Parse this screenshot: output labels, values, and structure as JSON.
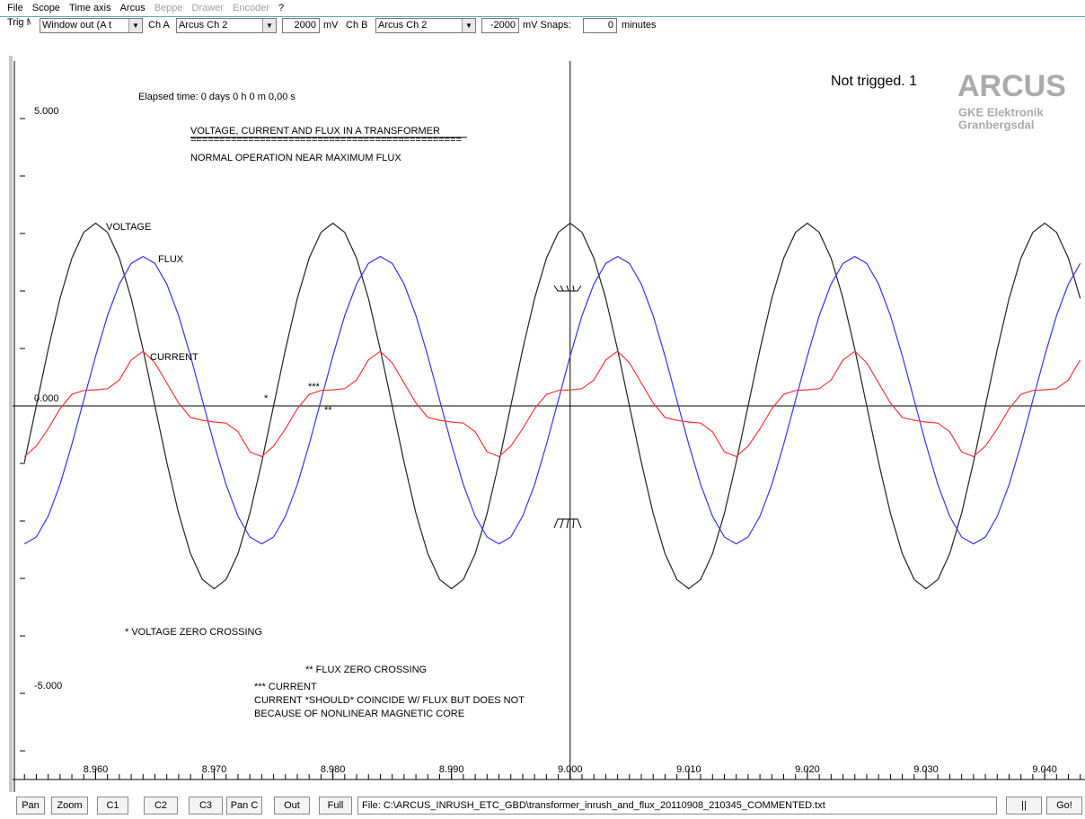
{
  "menu": [
    {
      "label": "File",
      "enabled": true
    },
    {
      "label": "Scope",
      "enabled": true
    },
    {
      "label": "Time axis",
      "enabled": true
    },
    {
      "label": "Arcus",
      "enabled": true
    },
    {
      "label": "Beppe",
      "enabled": false
    },
    {
      "label": "Drawer",
      "enabled": false
    },
    {
      "label": "Encoder",
      "enabled": false
    },
    {
      "label": "?",
      "enabled": true
    }
  ],
  "toolbar": {
    "trig_label": "Trig Mode",
    "trig_mode": "Window out (A t",
    "cha_label": "Ch A",
    "cha_source": "Arcus Ch 2",
    "cha_level": "2000",
    "cha_unit": "mV",
    "chb_label": "Ch B",
    "chb_source": "Arcus Ch 2",
    "chb_level": "-2000",
    "chb_unit": "mV Snaps:",
    "snaps": "0",
    "snaps_unit": "minutes"
  },
  "buttons": [
    "Pan",
    "Zoom",
    "C1",
    "C2",
    "C3",
    "Pan C",
    "Out",
    "Full"
  ],
  "status_file": "File: C:\\ARCUS_INRUSH_ETC_GBD\\transformer_inrush_and_flux_20110908_210345_COMMENTED.txt",
  "buttons_right": [
    "||",
    "Go!"
  ],
  "chart_data": {
    "type": "line",
    "status": "Not trigged. 1",
    "logo": "ARCUS",
    "logo_line1": "GKE Elektronik",
    "logo_line2": "Granbergsdal",
    "elapsed": "Elapsed time: 0 days 0 h 0 m 0,00 s",
    "annotations": [
      "VOLTAGE, CURRENT AND FLUX IN A TRANSFORMER",
      "===============================================",
      "NORMAL OPERATION NEAR MAXIMUM FLUX",
      "* VOLTAGE ZERO CROSSING",
      "** FLUX ZERO CROSSING",
      "*** CURRENT",
      "CURRENT *SHOULD* COINCIDE W/ FLUX BUT DOES NOT",
      "BECAUSE OF NONLINEAR MAGNETIC CORE",
      "*",
      "***",
      "**"
    ],
    "x": [
      8.954,
      8.955,
      8.956,
      8.957,
      8.958,
      8.959,
      8.96,
      8.961,
      8.962,
      8.963,
      8.964,
      8.965,
      8.966,
      8.967,
      8.968,
      8.969,
      8.97,
      8.971,
      8.972,
      8.973,
      8.974,
      8.975,
      8.976,
      8.977,
      8.978,
      8.979,
      8.98,
      8.981,
      8.982,
      8.983,
      8.984,
      8.985,
      8.986,
      8.987,
      8.988,
      8.989,
      8.99,
      8.991,
      8.992,
      8.993,
      8.994,
      8.995,
      8.996,
      8.997,
      8.998,
      8.999,
      9.0,
      9.001,
      9.002,
      9.003,
      9.004,
      9.005,
      9.006,
      9.007,
      9.008,
      9.009,
      9.01,
      9.011,
      9.012,
      9.013,
      9.014,
      9.015,
      9.016,
      9.017,
      9.018,
      9.019,
      9.02,
      9.021,
      9.022,
      9.023,
      9.024,
      9.025,
      9.026,
      9.027,
      9.028,
      9.029,
      9.03,
      9.031,
      9.032,
      9.033,
      9.034,
      9.035,
      9.036,
      9.037,
      9.038,
      9.039,
      9.04,
      9.041,
      9.042,
      9.043
    ],
    "series": [
      {
        "name": "VOLTAGE",
        "color": "#222222",
        "values": [
          -0.98,
          0,
          0.98,
          1.87,
          2.57,
          3.02,
          3.18,
          3.02,
          2.57,
          1.87,
          0.98,
          0,
          -0.98,
          -1.87,
          -2.57,
          -3.02,
          -3.18,
          -3.02,
          -2.57,
          -1.87,
          -0.98,
          0,
          0.98,
          1.87,
          2.57,
          3.02,
          3.18,
          3.02,
          2.57,
          1.87,
          0.98,
          0,
          -0.98,
          -1.87,
          -2.57,
          -3.02,
          -3.18,
          -3.02,
          -2.57,
          -1.87,
          -0.98,
          0,
          0.98,
          1.87,
          2.57,
          3.02,
          3.18,
          3.02,
          2.57,
          1.87,
          0.98,
          0,
          -0.98,
          -1.87,
          -2.57,
          -3.02,
          -3.18,
          -3.02,
          -2.57,
          -1.87,
          -0.98,
          0,
          0.98,
          1.87,
          2.57,
          3.02,
          3.18,
          3.02,
          2.57,
          1.87,
          0.98,
          0,
          -0.98,
          -1.87,
          -2.57,
          -3.02,
          -3.18,
          -3.02,
          -2.57,
          -1.87,
          -0.98,
          0,
          0.98,
          1.87,
          2.57,
          3.02,
          3.18,
          3.02,
          2.57,
          1.87
        ]
      },
      {
        "name": "FLUX",
        "color": "#3333ff",
        "values": [
          -2.4,
          -2.28,
          -1.92,
          -1.37,
          -0.67,
          0.1,
          0.87,
          1.57,
          2.12,
          2.48,
          2.6,
          2.48,
          2.12,
          1.57,
          0.87,
          0.1,
          -0.67,
          -1.37,
          -1.92,
          -2.28,
          -2.4,
          -2.28,
          -1.92,
          -1.37,
          -0.67,
          0.1,
          0.87,
          1.57,
          2.12,
          2.48,
          2.6,
          2.48,
          2.12,
          1.57,
          0.87,
          0.1,
          -0.67,
          -1.37,
          -1.92,
          -2.28,
          -2.4,
          -2.28,
          -1.92,
          -1.37,
          -0.67,
          0.1,
          0.87,
          1.57,
          2.12,
          2.48,
          2.6,
          2.48,
          2.12,
          1.57,
          0.87,
          0.1,
          -0.67,
          -1.37,
          -1.92,
          -2.28,
          -2.4,
          -2.28,
          -1.92,
          -1.37,
          -0.67,
          0.1,
          0.87,
          1.57,
          2.12,
          2.48,
          2.6,
          2.48,
          2.12,
          1.57,
          0.87,
          0.1,
          -0.67,
          -1.37,
          -1.92,
          -2.28,
          -2.4,
          -2.28,
          -1.92,
          -1.37,
          -0.67,
          0.1,
          0.87,
          1.57,
          2.12,
          2.48
        ]
      },
      {
        "name": "CURRENT",
        "color": "#ff3333",
        "values": [
          -0.88,
          -0.7,
          -0.4,
          -0.05,
          0.2,
          0.27,
          0.28,
          0.3,
          0.45,
          0.8,
          0.95,
          0.75,
          0.4,
          0.05,
          -0.2,
          -0.25,
          -0.28,
          -0.3,
          -0.45,
          -0.8,
          -0.88,
          -0.7,
          -0.4,
          -0.05,
          0.2,
          0.27,
          0.28,
          0.3,
          0.45,
          0.8,
          0.95,
          0.75,
          0.4,
          0.05,
          -0.2,
          -0.25,
          -0.28,
          -0.3,
          -0.45,
          -0.8,
          -0.88,
          -0.7,
          -0.4,
          -0.05,
          0.2,
          0.27,
          0.28,
          0.3,
          0.45,
          0.8,
          0.95,
          0.75,
          0.4,
          0.05,
          -0.2,
          -0.25,
          -0.28,
          -0.3,
          -0.45,
          -0.8,
          -0.88,
          -0.7,
          -0.4,
          -0.05,
          0.2,
          0.27,
          0.28,
          0.3,
          0.45,
          0.8,
          0.95,
          0.75,
          0.4,
          0.05,
          -0.2,
          -0.25,
          -0.28,
          -0.3,
          -0.45,
          -0.8,
          -0.88,
          -0.7,
          -0.4,
          -0.05,
          0.2,
          0.27,
          0.28,
          0.3,
          0.45,
          0.8
        ]
      }
    ],
    "xlim": [
      8.953,
      9.0434
    ],
    "ylim": [
      -6.53,
      6.0
    ],
    "xticks": [
      {
        "value": 8.96,
        "label": "8.960"
      },
      {
        "value": 8.97,
        "label": "8.970"
      },
      {
        "value": 8.98,
        "label": "8.980"
      },
      {
        "value": 8.99,
        "label": "8.990"
      },
      {
        "value": 9.0,
        "label": "9.000"
      },
      {
        "value": 9.01,
        "label": "9.010"
      },
      {
        "value": 9.02,
        "label": "9.020"
      },
      {
        "value": 9.03,
        "label": "9.030"
      },
      {
        "value": 9.04,
        "label": "9.040"
      }
    ],
    "yticks": [
      {
        "value": 5,
        "label": "5.000"
      },
      {
        "value": 0,
        "label": "0.000"
      },
      {
        "value": -5,
        "label": "-5.000"
      }
    ],
    "yminorticks": [
      -6,
      -4,
      -3,
      -2,
      -1,
      1,
      2,
      3,
      4
    ]
  }
}
